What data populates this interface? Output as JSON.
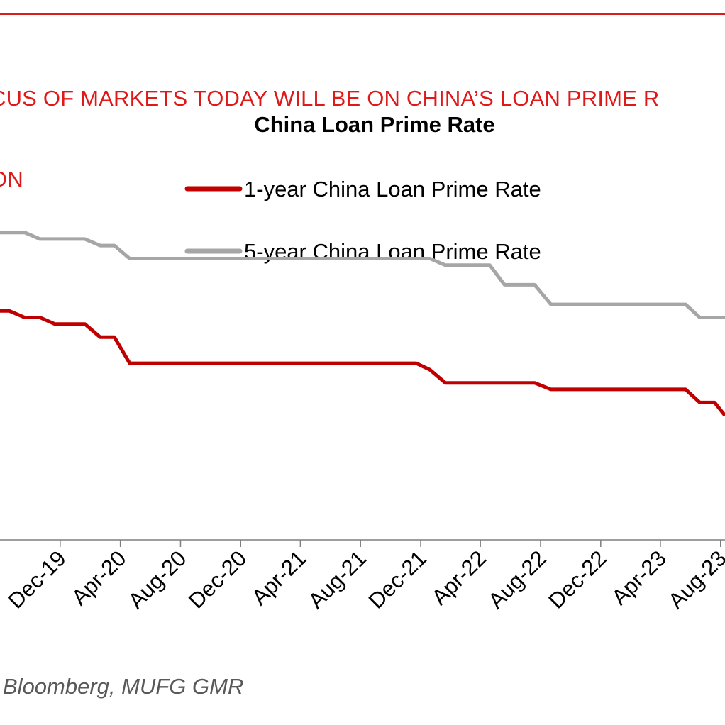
{
  "headline": {
    "line1": "CUS OF MARKETS TODAY WILL BE ON CHINA’S LOAN PRIME R",
    "line2": "ON"
  },
  "source": "Bloomberg, MUFG GMR",
  "colors": {
    "headline": "#e01818",
    "rule": "#d81e1e",
    "series_1y": "#c00000",
    "series_5y": "#a6a6a6",
    "axis": "#7f7f7f"
  },
  "chart_data": {
    "type": "line",
    "title": "China Loan Prime Rate",
    "xlabel": "",
    "ylabel": "",
    "x_tick_labels": [
      "Dec-19",
      "Apr-20",
      "Aug-20",
      "Dec-20",
      "Apr-21",
      "Aug-21",
      "Dec-21",
      "Apr-22",
      "Aug-22",
      "Dec-22",
      "Apr-23",
      "Aug-23"
    ],
    "x_tick_dates": [
      "2019-12-01",
      "2020-04-01",
      "2020-08-01",
      "2020-12-01",
      "2021-04-01",
      "2021-08-01",
      "2021-12-01",
      "2022-04-01",
      "2022-08-01",
      "2022-12-01",
      "2023-04-01",
      "2023-08-01"
    ],
    "xlim": [
      "2019-08-01",
      "2023-08-10"
    ],
    "ylim": [
      2.5,
      5.0
    ],
    "grid": false,
    "legend_position": "top-right",
    "series": [
      {
        "name": "1-year China Loan Prime Rate",
        "color": "#c00000",
        "points": [
          [
            "2019-08-01",
            4.25
          ],
          [
            "2019-08-20",
            4.25
          ],
          [
            "2019-09-20",
            4.2
          ],
          [
            "2019-10-21",
            4.2
          ],
          [
            "2019-11-20",
            4.15
          ],
          [
            "2019-12-20",
            4.15
          ],
          [
            "2020-01-20",
            4.15
          ],
          [
            "2020-02-20",
            4.05
          ],
          [
            "2020-03-20",
            4.05
          ],
          [
            "2020-04-20",
            3.85
          ],
          [
            "2020-05-20",
            3.85
          ],
          [
            "2020-08-20",
            3.85
          ],
          [
            "2020-12-21",
            3.85
          ],
          [
            "2021-04-20",
            3.85
          ],
          [
            "2021-08-20",
            3.85
          ],
          [
            "2021-11-22",
            3.85
          ],
          [
            "2021-12-20",
            3.8
          ],
          [
            "2022-01-20",
            3.7
          ],
          [
            "2022-04-20",
            3.7
          ],
          [
            "2022-07-20",
            3.7
          ],
          [
            "2022-08-22",
            3.65
          ],
          [
            "2022-12-20",
            3.65
          ],
          [
            "2023-05-22",
            3.65
          ],
          [
            "2023-06-20",
            3.55
          ],
          [
            "2023-07-20",
            3.55
          ],
          [
            "2023-08-10",
            3.45
          ]
        ]
      },
      {
        "name": "5-year China Loan Prime Rate",
        "color": "#a6a6a6",
        "points": [
          [
            "2019-08-01",
            4.85
          ],
          [
            "2019-09-20",
            4.85
          ],
          [
            "2019-10-21",
            4.8
          ],
          [
            "2019-11-20",
            4.8
          ],
          [
            "2019-12-20",
            4.8
          ],
          [
            "2020-01-20",
            4.8
          ],
          [
            "2020-02-20",
            4.75
          ],
          [
            "2020-03-20",
            4.75
          ],
          [
            "2020-04-20",
            4.65
          ],
          [
            "2020-08-20",
            4.65
          ],
          [
            "2020-12-21",
            4.65
          ],
          [
            "2021-04-20",
            4.65
          ],
          [
            "2021-08-20",
            4.65
          ],
          [
            "2021-12-20",
            4.65
          ],
          [
            "2022-01-20",
            4.6
          ],
          [
            "2022-04-20",
            4.6
          ],
          [
            "2022-05-20",
            4.45
          ],
          [
            "2022-07-20",
            4.45
          ],
          [
            "2022-08-22",
            4.3
          ],
          [
            "2022-12-20",
            4.3
          ],
          [
            "2023-05-22",
            4.3
          ],
          [
            "2023-06-20",
            4.2
          ],
          [
            "2023-08-10",
            4.2
          ]
        ]
      }
    ]
  }
}
